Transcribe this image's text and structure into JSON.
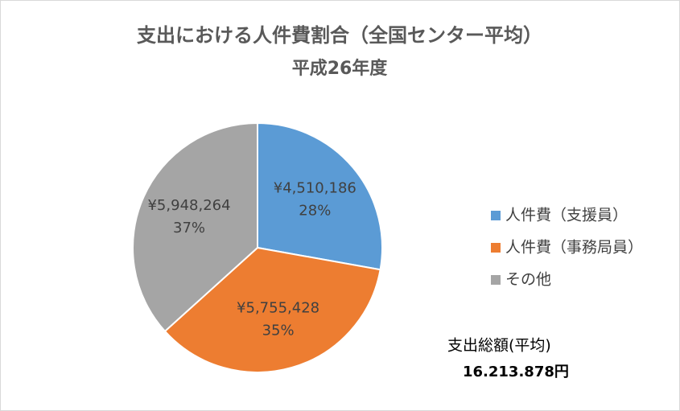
{
  "chart_data": {
    "type": "pie",
    "title": "支出における人件費割合（全国センター平均）",
    "subtitle": "平成26年度",
    "categories": [
      "人件費（支援員）",
      "人件費（事務局員）",
      "その他"
    ],
    "values": [
      4510186,
      5755428,
      5948264
    ],
    "value_labels": [
      "¥4,510,186",
      "¥5,755,428",
      "¥5,948,264"
    ],
    "percent_labels": [
      "28%",
      "35%",
      "37%"
    ],
    "colors": [
      "#5b9bd5",
      "#ed7d31",
      "#a5a5a5"
    ],
    "legend": "right",
    "annotations": [
      "支出総額(平均)",
      "16.213.878円"
    ]
  }
}
